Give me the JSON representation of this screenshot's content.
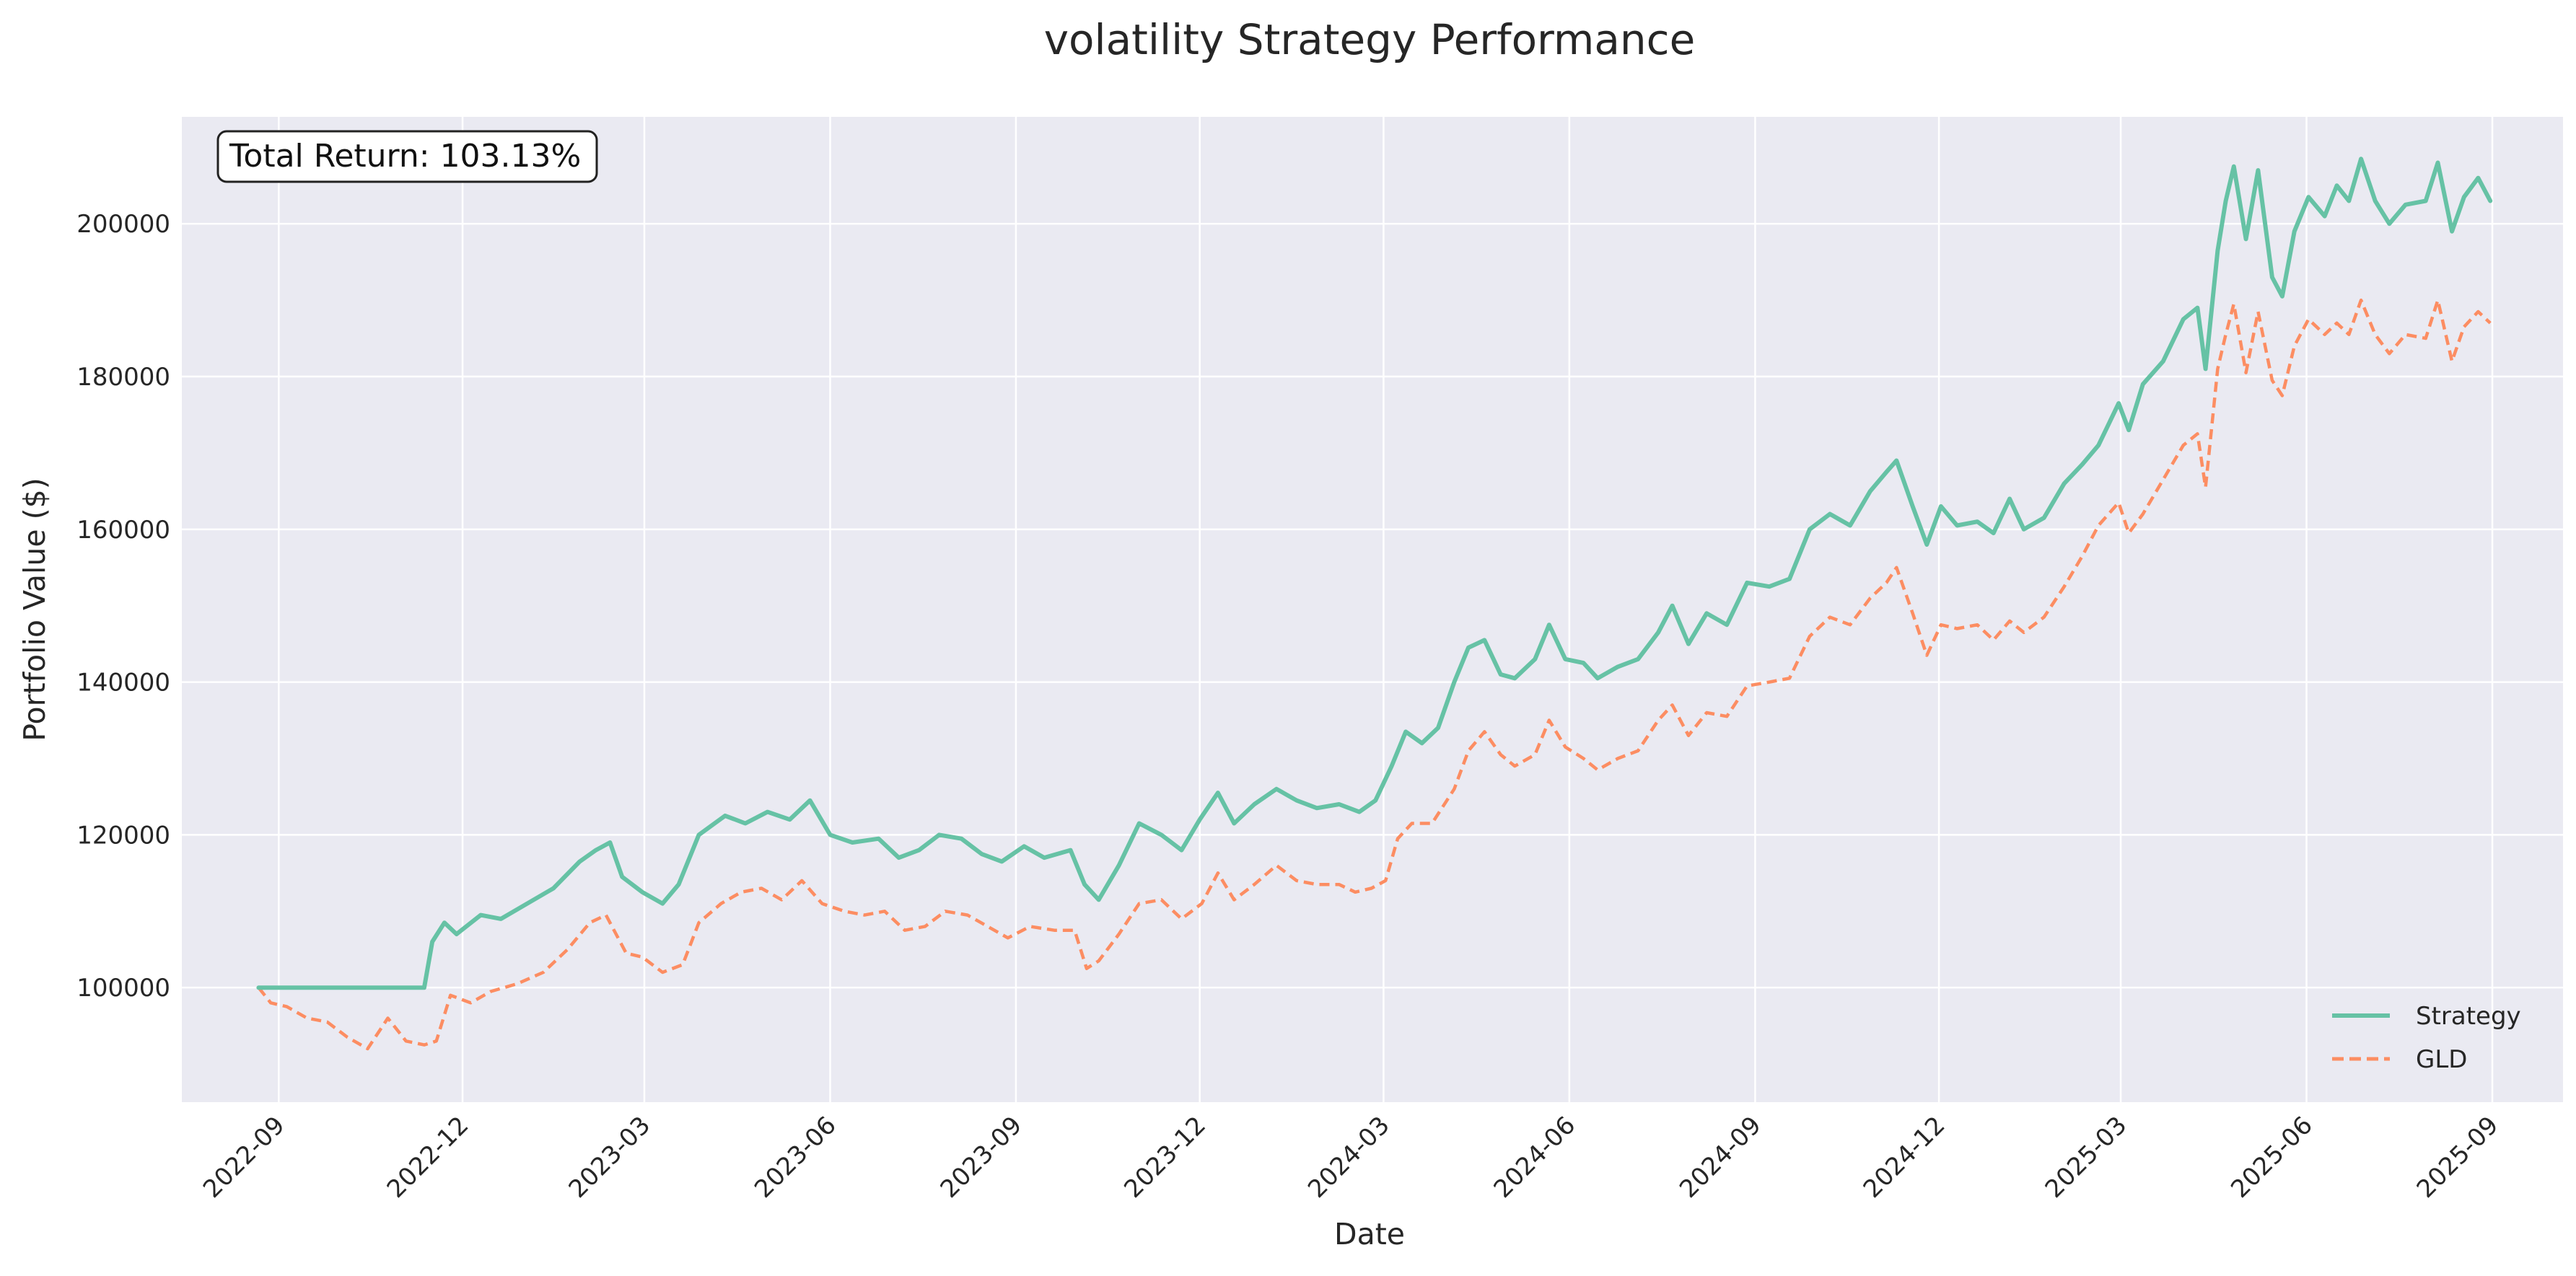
{
  "chart_data": {
    "type": "line",
    "title": "volatility Strategy Performance",
    "xlabel": "Date",
    "ylabel": "Portfolio Value ($)",
    "xlim": [
      "2022-07-15",
      "2025-10-06"
    ],
    "ylim": [
      85000,
      214000
    ],
    "x_ticks": [
      "2022-09",
      "2022-12",
      "2023-03",
      "2023-06",
      "2023-09",
      "2023-12",
      "2024-03",
      "2024-06",
      "2024-09",
      "2024-12",
      "2025-03",
      "2025-06",
      "2025-09"
    ],
    "y_ticks": [
      100000,
      120000,
      140000,
      160000,
      180000,
      200000
    ],
    "grid": true,
    "legend_position": "lower-right",
    "annotation": "Total Return: 103.13%",
    "colors": {
      "plot_bg": "#eaeaf2",
      "grid": "#ffffff",
      "strategy": "#66c2a5",
      "benchmark": "#fc8d62"
    },
    "series": [
      {
        "name": "Strategy",
        "style": "solid",
        "points": [
          [
            "2022-08-22",
            100000
          ],
          [
            "2022-09-15",
            100000
          ],
          [
            "2022-10-15",
            100000
          ],
          [
            "2022-11-05",
            100000
          ],
          [
            "2022-11-12",
            100000
          ],
          [
            "2022-11-16",
            106000
          ],
          [
            "2022-11-22",
            108500
          ],
          [
            "2022-11-28",
            107000
          ],
          [
            "2022-12-10",
            109500
          ],
          [
            "2022-12-20",
            109000
          ],
          [
            "2023-01-02",
            111000
          ],
          [
            "2023-01-15",
            113000
          ],
          [
            "2023-01-28",
            116500
          ],
          [
            "2023-02-05",
            118000
          ],
          [
            "2023-02-12",
            119000
          ],
          [
            "2023-02-18",
            114500
          ],
          [
            "2023-02-28",
            112500
          ],
          [
            "2023-03-10",
            111000
          ],
          [
            "2023-03-18",
            113500
          ],
          [
            "2023-03-28",
            120000
          ],
          [
            "2023-04-10",
            122500
          ],
          [
            "2023-04-20",
            121500
          ],
          [
            "2023-05-01",
            123000
          ],
          [
            "2023-05-12",
            122000
          ],
          [
            "2023-05-22",
            124500
          ],
          [
            "2023-06-01",
            120000
          ],
          [
            "2023-06-12",
            119000
          ],
          [
            "2023-06-25",
            119500
          ],
          [
            "2023-07-05",
            117000
          ],
          [
            "2023-07-15",
            118000
          ],
          [
            "2023-07-25",
            120000
          ],
          [
            "2023-08-05",
            119500
          ],
          [
            "2023-08-15",
            117500
          ],
          [
            "2023-08-25",
            116500
          ],
          [
            "2023-09-05",
            118500
          ],
          [
            "2023-09-15",
            117000
          ],
          [
            "2023-09-28",
            118000
          ],
          [
            "2023-10-05",
            113500
          ],
          [
            "2023-10-12",
            111500
          ],
          [
            "2023-10-22",
            116000
          ],
          [
            "2023-11-01",
            121500
          ],
          [
            "2023-11-12",
            120000
          ],
          [
            "2023-11-22",
            118000
          ],
          [
            "2023-12-01",
            122000
          ],
          [
            "2023-12-10",
            125500
          ],
          [
            "2023-12-18",
            121500
          ],
          [
            "2023-12-28",
            124000
          ],
          [
            "2024-01-08",
            126000
          ],
          [
            "2024-01-18",
            124500
          ],
          [
            "2024-01-28",
            123500
          ],
          [
            "2024-02-08",
            124000
          ],
          [
            "2024-02-18",
            123000
          ],
          [
            "2024-02-26",
            124500
          ],
          [
            "2024-03-05",
            129000
          ],
          [
            "2024-03-12",
            133500
          ],
          [
            "2024-03-20",
            132000
          ],
          [
            "2024-03-28",
            134000
          ],
          [
            "2024-04-05",
            140000
          ],
          [
            "2024-04-12",
            144500
          ],
          [
            "2024-04-20",
            145500
          ],
          [
            "2024-04-28",
            141000
          ],
          [
            "2024-05-05",
            140500
          ],
          [
            "2024-05-15",
            143000
          ],
          [
            "2024-05-22",
            147500
          ],
          [
            "2024-05-30",
            143000
          ],
          [
            "2024-06-08",
            142500
          ],
          [
            "2024-06-15",
            140500
          ],
          [
            "2024-06-25",
            142000
          ],
          [
            "2024-07-05",
            143000
          ],
          [
            "2024-07-15",
            146500
          ],
          [
            "2024-07-22",
            150000
          ],
          [
            "2024-07-30",
            145000
          ],
          [
            "2024-08-08",
            149000
          ],
          [
            "2024-08-18",
            147500
          ],
          [
            "2024-08-28",
            153000
          ],
          [
            "2024-09-08",
            152500
          ],
          [
            "2024-09-18",
            153500
          ],
          [
            "2024-09-28",
            160000
          ],
          [
            "2024-10-08",
            162000
          ],
          [
            "2024-10-18",
            160500
          ],
          [
            "2024-10-28",
            165000
          ],
          [
            "2024-11-05",
            167500
          ],
          [
            "2024-11-10",
            169000
          ],
          [
            "2024-11-18",
            163000
          ],
          [
            "2024-11-25",
            158000
          ],
          [
            "2024-12-02",
            163000
          ],
          [
            "2024-12-10",
            160500
          ],
          [
            "2024-12-20",
            161000
          ],
          [
            "2024-12-28",
            159500
          ],
          [
            "2025-01-05",
            164000
          ],
          [
            "2025-01-12",
            160000
          ],
          [
            "2025-01-22",
            161500
          ],
          [
            "2025-02-01",
            166000
          ],
          [
            "2025-02-10",
            168500
          ],
          [
            "2025-02-18",
            171000
          ],
          [
            "2025-02-28",
            176500
          ],
          [
            "2025-03-05",
            173000
          ],
          [
            "2025-03-12",
            179000
          ],
          [
            "2025-03-22",
            182000
          ],
          [
            "2025-04-01",
            187500
          ],
          [
            "2025-04-08",
            189000
          ],
          [
            "2025-04-12",
            181000
          ],
          [
            "2025-04-18",
            196500
          ],
          [
            "2025-04-22",
            203000
          ],
          [
            "2025-04-26",
            207500
          ],
          [
            "2025-05-02",
            198000
          ],
          [
            "2025-05-08",
            207000
          ],
          [
            "2025-05-15",
            193000
          ],
          [
            "2025-05-20",
            190500
          ],
          [
            "2025-05-26",
            199000
          ],
          [
            "2025-06-02",
            203500
          ],
          [
            "2025-06-10",
            201000
          ],
          [
            "2025-06-16",
            205000
          ],
          [
            "2025-06-22",
            203000
          ],
          [
            "2025-06-28",
            208500
          ],
          [
            "2025-07-05",
            203000
          ],
          [
            "2025-07-12",
            200000
          ],
          [
            "2025-07-20",
            202500
          ],
          [
            "2025-07-30",
            203000
          ],
          [
            "2025-08-05",
            208000
          ],
          [
            "2025-08-12",
            199000
          ],
          [
            "2025-08-18",
            203500
          ],
          [
            "2025-08-25",
            206000
          ],
          [
            "2025-08-31",
            203000
          ]
        ]
      },
      {
        "name": "GLD",
        "style": "dashed",
        "points": [
          [
            "2022-08-22",
            100000
          ],
          [
            "2022-08-28",
            98000
          ],
          [
            "2022-09-05",
            97500
          ],
          [
            "2022-09-15",
            96000
          ],
          [
            "2022-09-25",
            95500
          ],
          [
            "2022-10-05",
            93500
          ],
          [
            "2022-10-15",
            92000
          ],
          [
            "2022-10-25",
            96000
          ],
          [
            "2022-11-03",
            93000
          ],
          [
            "2022-11-12",
            92500
          ],
          [
            "2022-11-18",
            93000
          ],
          [
            "2022-11-25",
            99000
          ],
          [
            "2022-12-05",
            98000
          ],
          [
            "2022-12-15",
            99500
          ],
          [
            "2022-12-28",
            100500
          ],
          [
            "2023-01-10",
            102000
          ],
          [
            "2023-01-22",
            105000
          ],
          [
            "2023-02-02",
            108500
          ],
          [
            "2023-02-10",
            109500
          ],
          [
            "2023-02-20",
            104500
          ],
          [
            "2023-02-28",
            104000
          ],
          [
            "2023-03-10",
            102000
          ],
          [
            "2023-03-20",
            103000
          ],
          [
            "2023-03-28",
            108500
          ],
          [
            "2023-04-08",
            111000
          ],
          [
            "2023-04-18",
            112500
          ],
          [
            "2023-04-28",
            113000
          ],
          [
            "2023-05-08",
            111500
          ],
          [
            "2023-05-18",
            114000
          ],
          [
            "2023-05-28",
            111000
          ],
          [
            "2023-06-08",
            110000
          ],
          [
            "2023-06-18",
            109500
          ],
          [
            "2023-06-28",
            110000
          ],
          [
            "2023-07-08",
            107500
          ],
          [
            "2023-07-18",
            108000
          ],
          [
            "2023-07-28",
            110000
          ],
          [
            "2023-08-08",
            109500
          ],
          [
            "2023-08-18",
            108000
          ],
          [
            "2023-08-28",
            106500
          ],
          [
            "2023-09-08",
            108000
          ],
          [
            "2023-09-20",
            107500
          ],
          [
            "2023-09-30",
            107500
          ],
          [
            "2023-10-06",
            102500
          ],
          [
            "2023-10-12",
            103500
          ],
          [
            "2023-10-22",
            107000
          ],
          [
            "2023-11-01",
            111000
          ],
          [
            "2023-11-12",
            111500
          ],
          [
            "2023-11-22",
            109000
          ],
          [
            "2023-12-02",
            111000
          ],
          [
            "2023-12-10",
            115000
          ],
          [
            "2023-12-18",
            111500
          ],
          [
            "2023-12-28",
            113500
          ],
          [
            "2024-01-08",
            116000
          ],
          [
            "2024-01-18",
            114000
          ],
          [
            "2024-01-28",
            113500
          ],
          [
            "2024-02-08",
            113500
          ],
          [
            "2024-02-16",
            112500
          ],
          [
            "2024-02-24",
            113000
          ],
          [
            "2024-03-02",
            114000
          ],
          [
            "2024-03-08",
            119500
          ],
          [
            "2024-03-15",
            121500
          ],
          [
            "2024-03-25",
            121500
          ],
          [
            "2024-04-05",
            126000
          ],
          [
            "2024-04-12",
            131000
          ],
          [
            "2024-04-20",
            133500
          ],
          [
            "2024-04-28",
            130500
          ],
          [
            "2024-05-05",
            129000
          ],
          [
            "2024-05-15",
            130500
          ],
          [
            "2024-05-22",
            135000
          ],
          [
            "2024-05-30",
            131500
          ],
          [
            "2024-06-08",
            130000
          ],
          [
            "2024-06-15",
            128500
          ],
          [
            "2024-06-25",
            130000
          ],
          [
            "2024-07-05",
            131000
          ],
          [
            "2024-07-15",
            135000
          ],
          [
            "2024-07-22",
            137000
          ],
          [
            "2024-07-30",
            133000
          ],
          [
            "2024-08-08",
            136000
          ],
          [
            "2024-08-18",
            135500
          ],
          [
            "2024-08-28",
            139500
          ],
          [
            "2024-09-08",
            140000
          ],
          [
            "2024-09-18",
            140500
          ],
          [
            "2024-09-28",
            146000
          ],
          [
            "2024-10-08",
            148500
          ],
          [
            "2024-10-18",
            147500
          ],
          [
            "2024-10-28",
            151000
          ],
          [
            "2024-11-05",
            153000
          ],
          [
            "2024-11-10",
            155000
          ],
          [
            "2024-11-18",
            149000
          ],
          [
            "2024-11-25",
            143500
          ],
          [
            "2024-12-02",
            147500
          ],
          [
            "2024-12-10",
            147000
          ],
          [
            "2024-12-20",
            147500
          ],
          [
            "2024-12-28",
            145500
          ],
          [
            "2025-01-05",
            148000
          ],
          [
            "2025-01-12",
            146500
          ],
          [
            "2025-01-22",
            148500
          ],
          [
            "2025-02-01",
            152500
          ],
          [
            "2025-02-10",
            156500
          ],
          [
            "2025-02-18",
            160500
          ],
          [
            "2025-02-28",
            163500
          ],
          [
            "2025-03-05",
            159500
          ],
          [
            "2025-03-12",
            162000
          ],
          [
            "2025-03-22",
            166500
          ],
          [
            "2025-04-01",
            171000
          ],
          [
            "2025-04-08",
            172500
          ],
          [
            "2025-04-12",
            165500
          ],
          [
            "2025-04-18",
            181000
          ],
          [
            "2025-04-22",
            185500
          ],
          [
            "2025-04-26",
            189500
          ],
          [
            "2025-05-02",
            180500
          ],
          [
            "2025-05-08",
            188500
          ],
          [
            "2025-05-15",
            179500
          ],
          [
            "2025-05-20",
            177500
          ],
          [
            "2025-05-26",
            184000
          ],
          [
            "2025-06-02",
            187500
          ],
          [
            "2025-06-10",
            185500
          ],
          [
            "2025-06-16",
            187000
          ],
          [
            "2025-06-22",
            185500
          ],
          [
            "2025-06-28",
            190000
          ],
          [
            "2025-07-05",
            185500
          ],
          [
            "2025-07-12",
            183000
          ],
          [
            "2025-07-20",
            185500
          ],
          [
            "2025-07-30",
            185000
          ],
          [
            "2025-08-05",
            190000
          ],
          [
            "2025-08-12",
            182000
          ],
          [
            "2025-08-18",
            186500
          ],
          [
            "2025-08-25",
            188500
          ],
          [
            "2025-08-31",
            187000
          ]
        ]
      }
    ]
  }
}
